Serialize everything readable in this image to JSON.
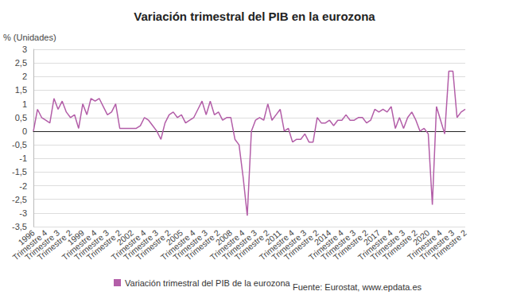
{
  "chart_data": {
    "type": "line",
    "title": "Variación trimestral del PIB en la eurozona",
    "y_label": "% (Unidades)",
    "source": "Fuente: Eurostat, www.epdata.es",
    "categories": [
      "1996",
      null,
      null,
      "Trimestre 4",
      null,
      null,
      "Trimestre 3",
      null,
      null,
      "Trimestre 2",
      null,
      null,
      "1999",
      null,
      null,
      "Trimestre 4",
      null,
      null,
      "Trimestre 3",
      null,
      null,
      "Trimestre 2",
      null,
      null,
      "2002",
      null,
      null,
      "Trimestre 4",
      null,
      null,
      "Trimestre 3",
      null,
      null,
      "Trimestre 2",
      null,
      null,
      "2005",
      null,
      null,
      "Trimestre 4",
      null,
      null,
      "Trimestre 3",
      null,
      null,
      "Trimestre 2",
      null,
      null,
      "2008",
      null,
      null,
      "Trimestre 4",
      null,
      null,
      "Trimestre 3",
      null,
      null,
      "Trimestre 2",
      null,
      null,
      "2011",
      null,
      null,
      "Trimestre 4",
      null,
      null,
      "Trimestre 3",
      null,
      null,
      "Trimestre 2",
      null,
      null,
      "2014",
      null,
      null,
      "Trimestre 4",
      null,
      null,
      "Trimestre 3",
      null,
      null,
      "Trimestre 2",
      null,
      null,
      "2017",
      null,
      null,
      "Trimestre 4",
      null,
      null,
      "Trimestre 3",
      null,
      null,
      "Trimestre 2",
      null,
      null,
      "2020",
      null,
      null,
      "Trimestre 4",
      null,
      null,
      "Trimestre 3",
      null,
      null,
      "Trimestre 2"
    ],
    "series": [
      {
        "name": "Variación trimestral del PIB de la eurozona",
        "color": "#b35ea8",
        "values": [
          0.0,
          0.8,
          0.5,
          0.4,
          0.3,
          1.2,
          0.8,
          1.1,
          0.7,
          0.5,
          0.6,
          0.1,
          1.0,
          0.6,
          1.2,
          1.1,
          1.2,
          0.9,
          0.6,
          0.7,
          1.0,
          0.1,
          0.1,
          0.1,
          0.1,
          0.1,
          0.2,
          0.5,
          0.4,
          0.2,
          0.0,
          -0.3,
          0.3,
          0.6,
          0.7,
          0.5,
          0.6,
          0.3,
          0.4,
          0.5,
          0.8,
          1.1,
          0.6,
          1.1,
          0.6,
          0.7,
          0.4,
          0.5,
          0.5,
          -0.3,
          -0.5,
          -1.7,
          -3.1,
          0.0,
          0.4,
          0.5,
          0.4,
          1.0,
          0.4,
          0.6,
          0.8,
          0.0,
          0.1,
          -0.4,
          -0.3,
          -0.3,
          -0.1,
          -0.4,
          -0.4,
          0.5,
          0.3,
          0.3,
          0.4,
          0.2,
          0.4,
          0.4,
          0.6,
          0.4,
          0.4,
          0.5,
          0.5,
          0.3,
          0.4,
          0.8,
          0.7,
          0.8,
          0.7,
          0.9,
          0.1,
          0.5,
          0.1,
          0.5,
          0.7,
          0.4,
          0.0,
          0.1,
          -0.1,
          -2.7,
          0.9,
          0.4,
          -0.1,
          2.2,
          2.2,
          0.5,
          0.7,
          0.8
        ]
      }
    ],
    "ylim": [
      -3.5,
      3
    ],
    "yticks": [
      {
        "value": -3.5,
        "label": "-3,5"
      },
      -3,
      {
        "value": -2.5,
        "label": "-2,5"
      },
      -2,
      {
        "value": -1.5,
        "label": "-1,5"
      },
      -1,
      {
        "value": -0.5,
        "label": "-0,5"
      },
      0,
      {
        "value": 0.5,
        "label": "0,5"
      },
      1,
      {
        "value": 1.5,
        "label": "1,5"
      },
      2,
      {
        "value": 2.5,
        "label": "2,5"
      },
      3
    ],
    "grid": true,
    "legend": "bottom"
  }
}
